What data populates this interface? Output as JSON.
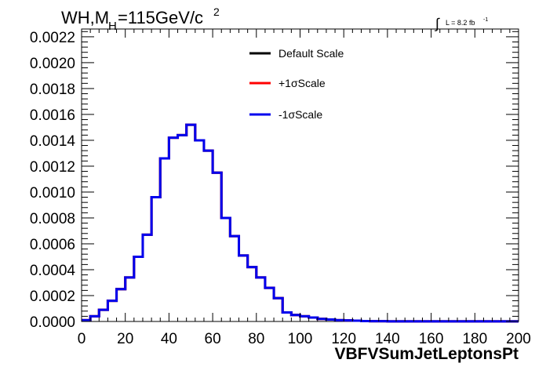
{
  "chart_data": {
    "type": "line",
    "style": "step-histogram",
    "title_main": "WH,M",
    "title_sub": "H",
    "title_rest": "=115GeV/c",
    "title_sup": "2",
    "lumi_integral": "∫",
    "lumi_text": "L = 8.2 fb",
    "lumi_sup": "-1",
    "xlabel": "VBFVSumJetLeptonsPt",
    "ylabel": "",
    "xlim": [
      0,
      200
    ],
    "ylim": [
      0,
      0.00226
    ],
    "x_ticks": [
      "0",
      "20",
      "40",
      "60",
      "80",
      "100",
      "120",
      "140",
      "160",
      "180",
      "200"
    ],
    "y_ticks": [
      "0.0000",
      "0.0002",
      "0.0004",
      "0.0006",
      "0.0008",
      "0.0010",
      "0.0012",
      "0.0014",
      "0.0016",
      "0.0018",
      "0.0020",
      "0.0022"
    ],
    "grid": false,
    "legend_position": "top-center",
    "bin_width": 4,
    "bin_edges_start": 0,
    "series": [
      {
        "name": "Default Scale",
        "color": "#000000",
        "values": [
          1e-05,
          4e-05,
          9e-05,
          0.00016,
          0.00025,
          0.00034,
          0.0005,
          0.00067,
          0.00096,
          0.00126,
          0.00142,
          0.00144,
          0.00152,
          0.0014,
          0.00132,
          0.00115,
          0.0008,
          0.00066,
          0.00051,
          0.00042,
          0.00034,
          0.00026,
          0.00018,
          7e-05,
          5e-05,
          4e-05,
          3e-05,
          2e-05,
          1.5e-05,
          1e-05,
          8e-06,
          6e-06,
          3e-06,
          2e-06,
          2e-06,
          1e-06,
          1e-06,
          1e-06,
          1e-06,
          1e-06,
          1e-06,
          1e-06,
          1e-06,
          1e-06,
          1e-06,
          1e-06,
          1e-06,
          1e-06,
          1e-06,
          1e-06
        ]
      },
      {
        "name": "+1σScale",
        "color": "#ff0000",
        "values": [
          1e-05,
          4e-05,
          9e-05,
          0.00016,
          0.00025,
          0.00034,
          0.0005,
          0.00067,
          0.00096,
          0.00126,
          0.00142,
          0.00144,
          0.00152,
          0.0014,
          0.00132,
          0.00115,
          0.0008,
          0.00066,
          0.00051,
          0.00042,
          0.00034,
          0.00026,
          0.00018,
          7e-05,
          5e-05,
          4e-05,
          3e-05,
          2e-05,
          1.5e-05,
          1e-05,
          8e-06,
          6e-06,
          3e-06,
          2e-06,
          2e-06,
          1e-06,
          1e-06,
          1e-06,
          1e-06,
          1e-06,
          1e-06,
          1e-06,
          1e-06,
          1e-06,
          1e-06,
          1e-06,
          1e-06,
          1e-06,
          1e-06,
          1e-06
        ]
      },
      {
        "name": "-1σScale",
        "color": "#0000ee",
        "values": [
          1e-05,
          4e-05,
          9e-05,
          0.00016,
          0.00025,
          0.00034,
          0.0005,
          0.00067,
          0.00096,
          0.00126,
          0.00142,
          0.00144,
          0.00152,
          0.0014,
          0.00132,
          0.00115,
          0.0008,
          0.00066,
          0.00051,
          0.00042,
          0.00034,
          0.00026,
          0.00018,
          7e-05,
          5e-05,
          4e-05,
          3e-05,
          2e-05,
          1.5e-05,
          1e-05,
          8e-06,
          6e-06,
          3e-06,
          2e-06,
          2e-06,
          1e-06,
          1e-06,
          1e-06,
          1e-06,
          1e-06,
          1e-06,
          1e-06,
          1e-06,
          1e-06,
          1e-06,
          1e-06,
          1e-06,
          1e-06,
          1e-06,
          1e-06
        ]
      }
    ]
  }
}
